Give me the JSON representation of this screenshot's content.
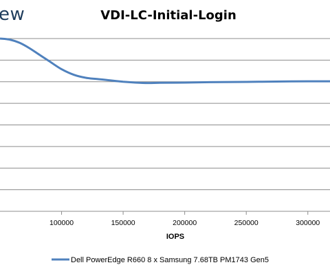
{
  "logo_text": "ew",
  "chart_data": {
    "type": "line",
    "title": "VDI-LC-Initial-Login",
    "xlabel": "IOPS",
    "ylabel": "",
    "xlim": [
      50000,
      318000
    ],
    "ylim": [
      0,
      8
    ],
    "x_ticks": [
      100000,
      150000,
      200000,
      250000,
      300000
    ],
    "x_tick_labels": [
      "100000",
      "150000",
      "200000",
      "250000",
      "300000"
    ],
    "y_gridlines": [
      1,
      2,
      3,
      4,
      5,
      6,
      7,
      8
    ],
    "grid": true,
    "legend_position": "bottom",
    "series": [
      {
        "name": "Dell PowerEdge R660 8 x Samsung 7.68TB PM1743 Gen5",
        "color": "#4f81bd",
        "x": [
          50000,
          58000,
          66000,
          74000,
          82000,
          90000,
          100000,
          110000,
          120000,
          130000,
          140000,
          150000,
          160000,
          170000,
          180000,
          200000,
          220000,
          240000,
          260000,
          280000,
          300000,
          318000
        ],
        "y": [
          8.0,
          7.95,
          7.8,
          7.55,
          7.25,
          6.95,
          6.58,
          6.32,
          6.18,
          6.12,
          6.06,
          6.0,
          5.96,
          5.94,
          5.95,
          5.96,
          5.98,
          5.99,
          6.0,
          6.01,
          6.02,
          6.02
        ]
      }
    ]
  }
}
